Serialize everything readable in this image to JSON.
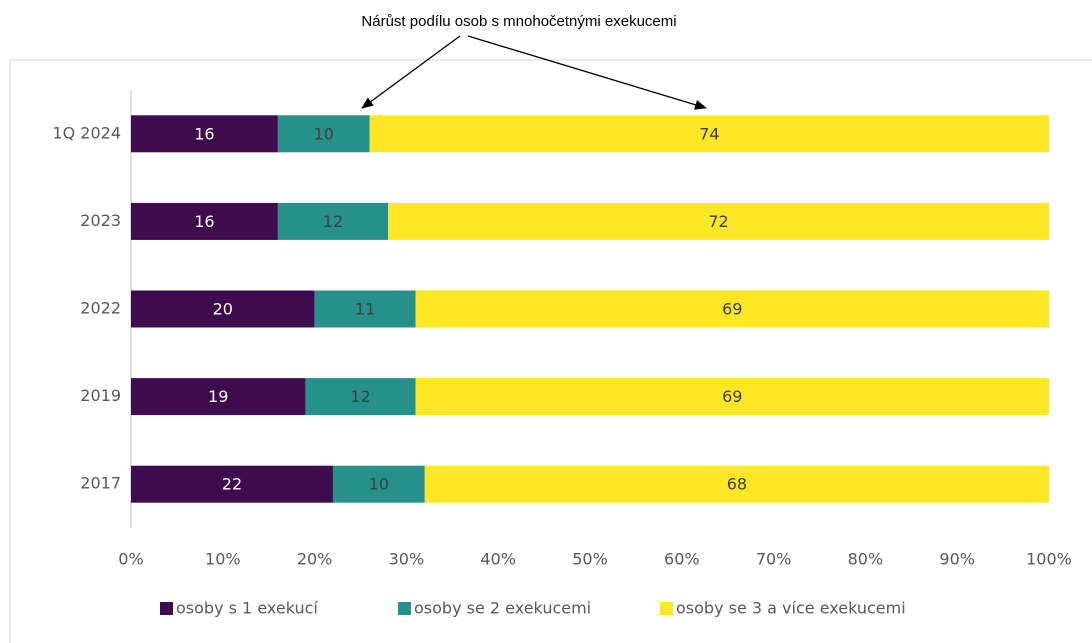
{
  "chart_data": {
    "type": "stacked_barh",
    "annotation": "Nárůst podílu osob s mnohočetnými exekucemi",
    "categories": [
      "1Q 2024",
      "2023",
      "2022",
      "2019",
      "2017"
    ],
    "series": [
      {
        "name": "osoby s 1 exekucí",
        "color": "#3f0b4f",
        "values": [
          16,
          16,
          20,
          19,
          22
        ]
      },
      {
        "name": "osoby se 2 exekucemi",
        "color": "#26908b",
        "values": [
          10,
          12,
          11,
          12,
          10
        ]
      },
      {
        "name": "osoby se 3 a více exekucemi",
        "color": "#fde725",
        "values": [
          74,
          72,
          69,
          69,
          68
        ]
      }
    ],
    "xlim": [
      0,
      100
    ],
    "xticks": [
      {
        "value": 0,
        "label": "0%"
      },
      {
        "value": 10,
        "label": "10%"
      },
      {
        "value": 20,
        "label": "20%"
      },
      {
        "value": 30,
        "label": "30%"
      },
      {
        "value": 40,
        "label": "40%"
      },
      {
        "value": 50,
        "label": "50%"
      },
      {
        "value": 60,
        "label": "60%"
      },
      {
        "value": 70,
        "label": "70%"
      },
      {
        "value": 80,
        "label": "80%"
      },
      {
        "value": 90,
        "label": "90%"
      },
      {
        "value": 100,
        "label": "100%"
      }
    ],
    "legend": "bottom",
    "grid": false
  }
}
